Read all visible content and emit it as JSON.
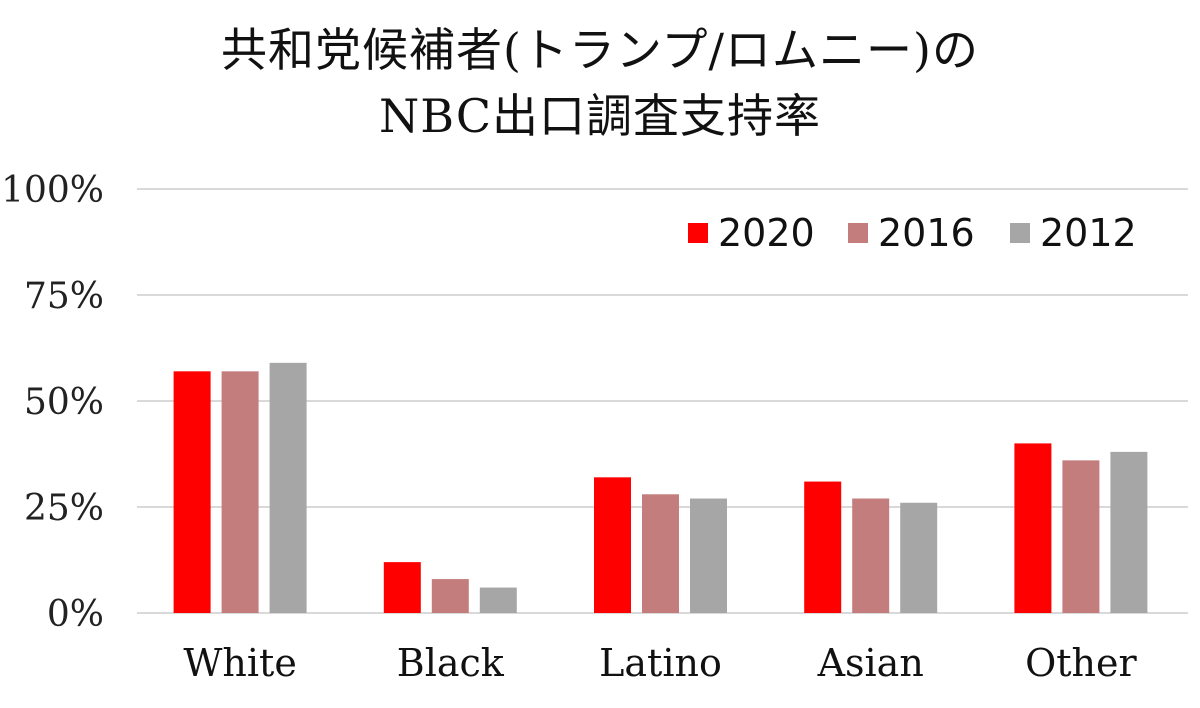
{
  "chart_data": {
    "type": "bar",
    "title_lines": [
      "共和党候補者(トランプ/ロムニー)の",
      "NBC出口調査支持率"
    ],
    "categories": [
      "White",
      "Black",
      "Latino",
      "Asian",
      "Other"
    ],
    "series": [
      {
        "name": "2020",
        "color": "#ff0000",
        "values": [
          57,
          12,
          32,
          31,
          40
        ]
      },
      {
        "name": "2016",
        "color": "#c47d7d",
        "values": [
          57,
          8,
          28,
          27,
          36
        ]
      },
      {
        "name": "2012",
        "color": "#a6a6a6",
        "values": [
          59,
          6,
          27,
          26,
          38
        ]
      }
    ],
    "ylim": [
      0,
      100
    ],
    "yticks": [
      0,
      25,
      50,
      75,
      100
    ],
    "ytick_labels": [
      "0%",
      "25%",
      "50%",
      "75%",
      "100%"
    ],
    "y_unit": "%",
    "grid": true,
    "legend_position": "top-right",
    "xlabel": "",
    "ylabel": ""
  }
}
